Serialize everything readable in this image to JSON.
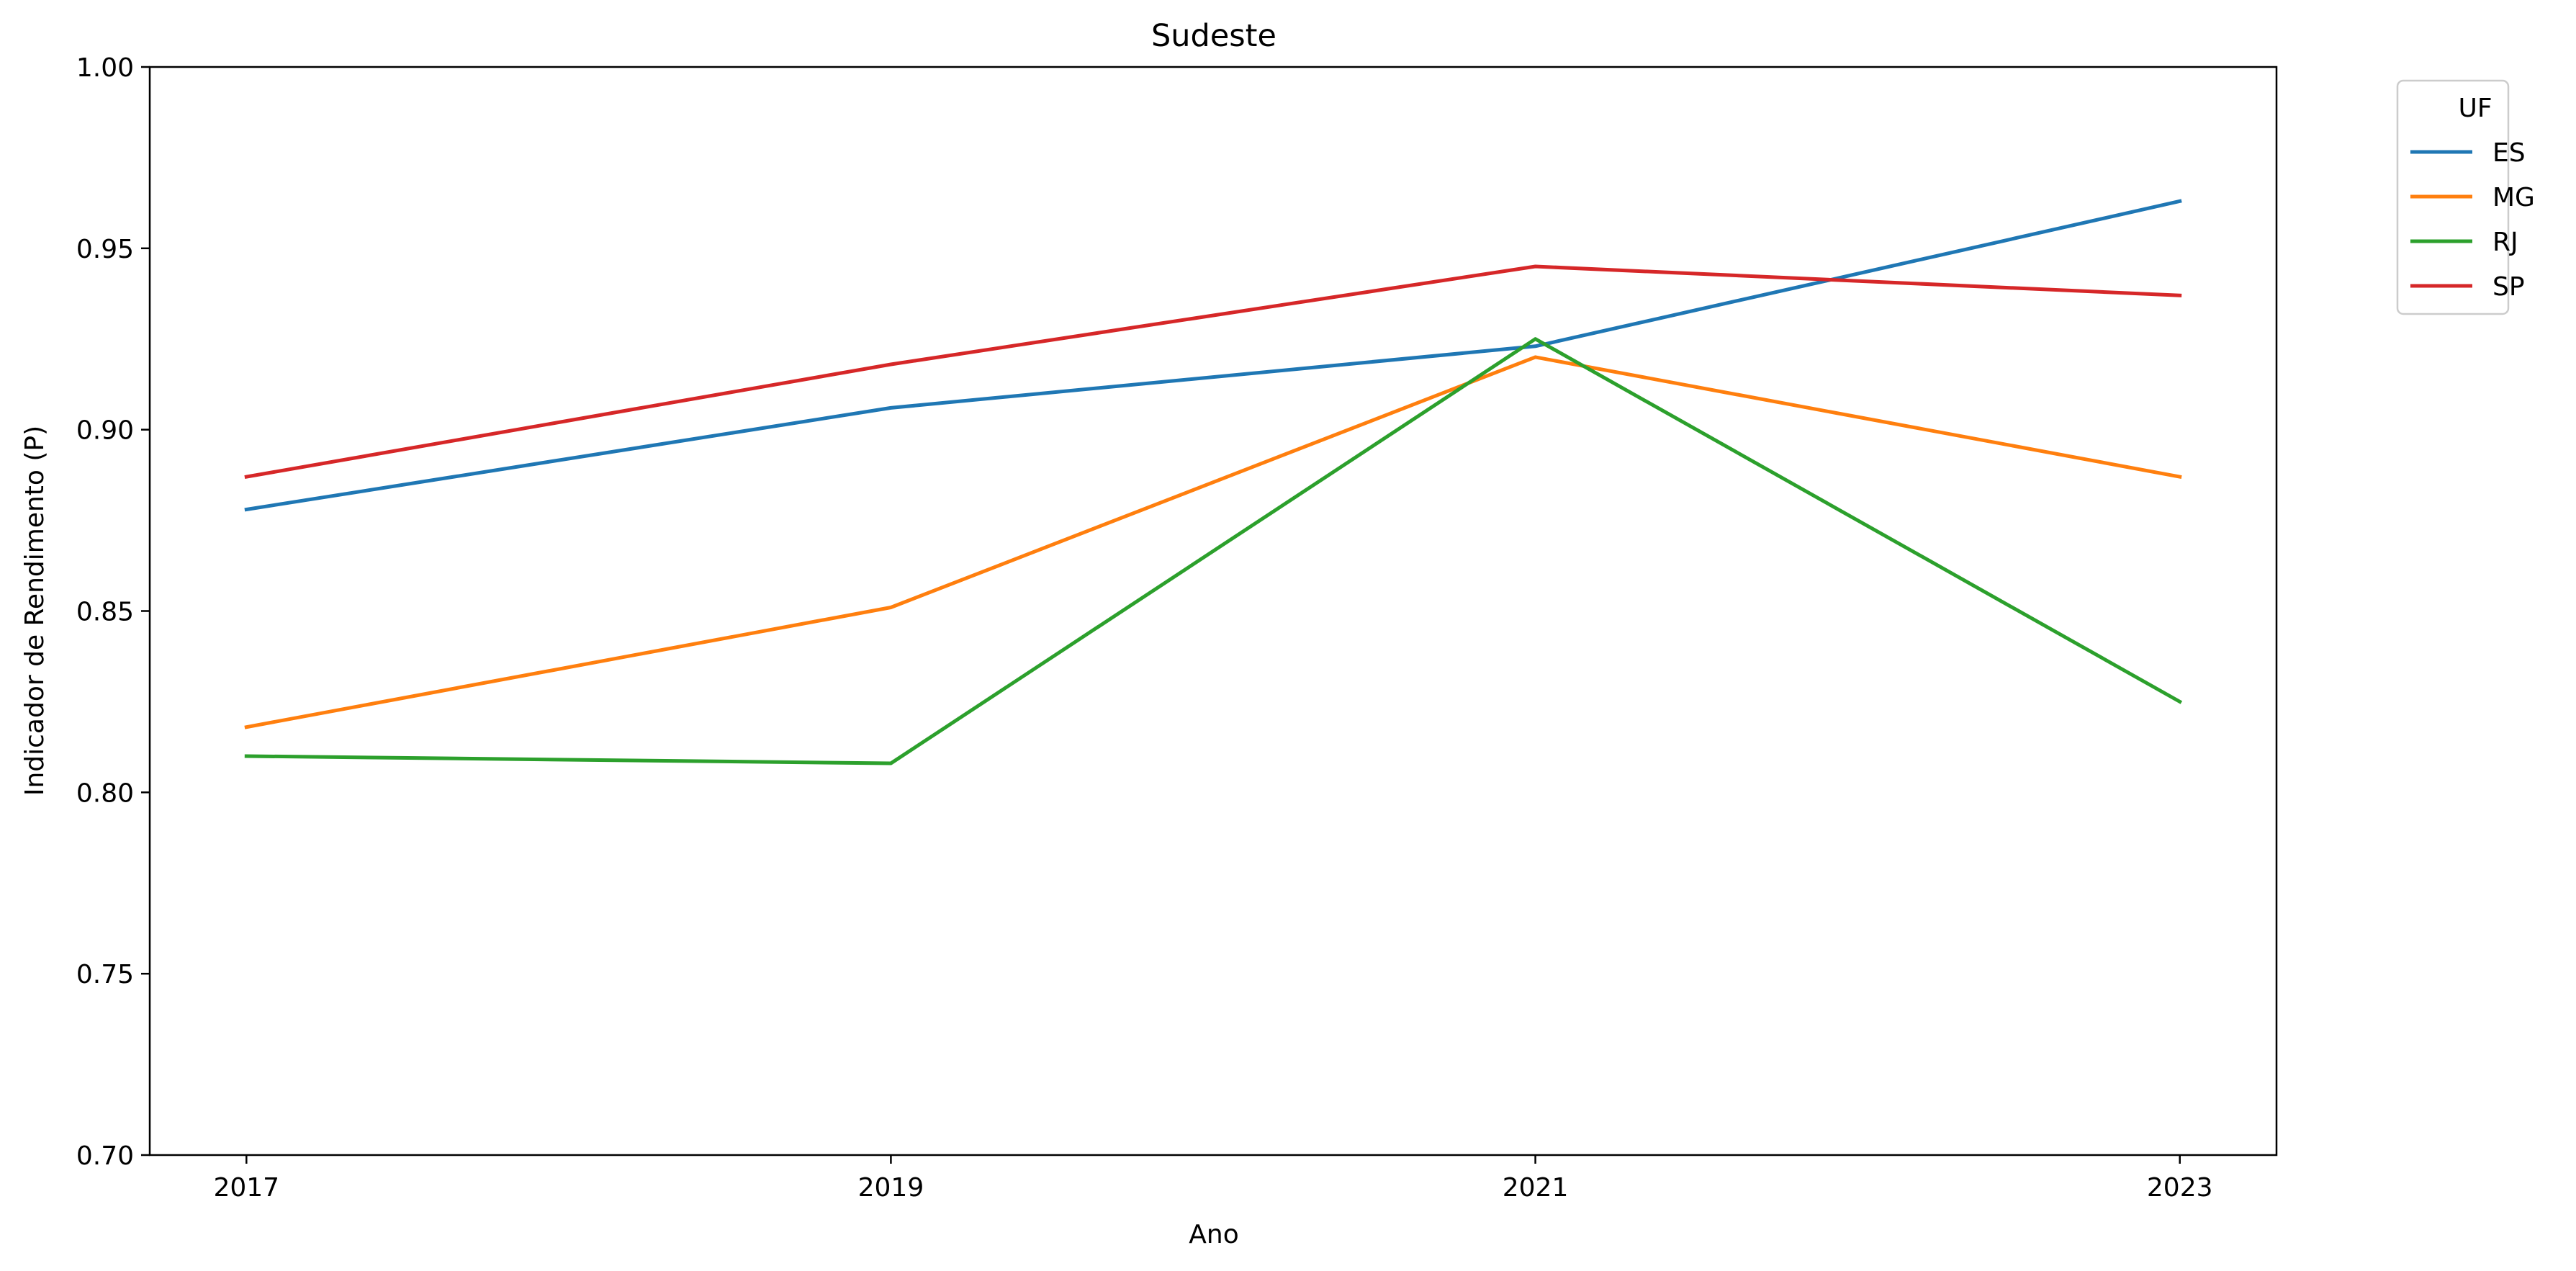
{
  "chart_data": {
    "type": "line",
    "title": "Sudeste",
    "xlabel": "Ano",
    "ylabel": "Indicador de Rendimento (P)",
    "x": [
      2017,
      2019,
      2021,
      2023
    ],
    "x_tick_labels": [
      "2017",
      "2019",
      "2021",
      "2023"
    ],
    "xlim": [
      2016.7,
      2023.3
    ],
    "ylim": [
      0.7,
      1.0
    ],
    "y_ticks": [
      0.7,
      0.75,
      0.8,
      0.85,
      0.9,
      0.95,
      1.0
    ],
    "y_tick_labels": [
      "0.70",
      "0.75",
      "0.80",
      "0.85",
      "0.90",
      "0.95",
      "1.00"
    ],
    "grid": false,
    "legend": {
      "title": "UF",
      "placement": "outside-top-right"
    },
    "series": [
      {
        "name": "ES",
        "color": "#1f77b4",
        "values": [
          0.878,
          0.906,
          0.923,
          0.963
        ]
      },
      {
        "name": "MG",
        "color": "#ff7f0e",
        "values": [
          0.818,
          0.851,
          0.92,
          0.887
        ]
      },
      {
        "name": "RJ",
        "color": "#2ca02c",
        "values": [
          0.81,
          0.808,
          0.925,
          0.825
        ]
      },
      {
        "name": "SP",
        "color": "#d62728",
        "values": [
          0.887,
          0.918,
          0.945,
          0.937
        ]
      }
    ]
  }
}
